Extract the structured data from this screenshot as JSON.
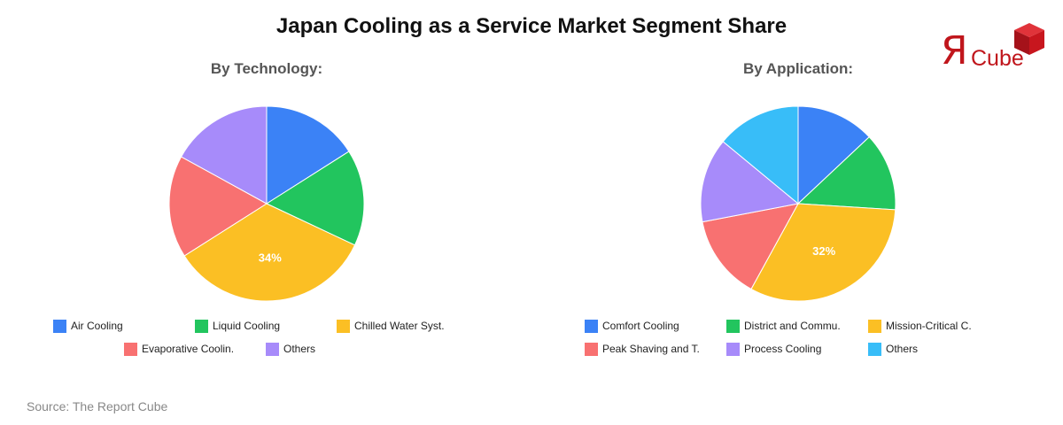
{
  "title": "Japan Cooling as a Service Market Segment Share",
  "logo": {
    "r_glyph": "Я",
    "text": "Cube",
    "brand_color": "#c0161c"
  },
  "source": "Source: The Report Cube",
  "chart_data": [
    {
      "type": "pie",
      "title": "By Technology:",
      "labels": [
        "Air Cooling",
        "Liquid Cooling",
        "Chilled Water Syst.",
        "Evaporative Coolin.",
        "Others"
      ],
      "values": [
        16,
        16,
        34,
        17,
        17
      ],
      "colors": [
        "#3b82f6",
        "#22c55e",
        "#fbbf24",
        "#f87171",
        "#a78bfa"
      ],
      "data_labels": [
        "",
        "",
        "34%",
        "",
        ""
      ],
      "legend_position": "bottom"
    },
    {
      "type": "pie",
      "title": "By Application:",
      "labels": [
        "Comfort Cooling",
        "District and Commu.",
        "Mission-Critical C.",
        "Peak Shaving and T.",
        "Process Cooling",
        "Others"
      ],
      "values": [
        13,
        13,
        32,
        14,
        14,
        14
      ],
      "colors": [
        "#3b82f6",
        "#22c55e",
        "#fbbf24",
        "#f87171",
        "#a78bfa",
        "#38bdf8"
      ],
      "data_labels": [
        "",
        "",
        "32%",
        "",
        "",
        ""
      ],
      "legend_position": "bottom"
    }
  ]
}
